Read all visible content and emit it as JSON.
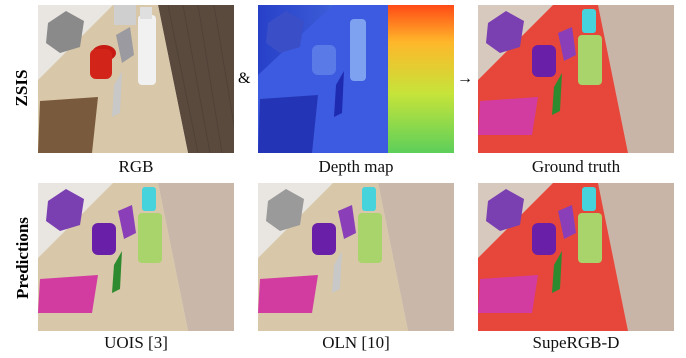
{
  "row_labels": {
    "top": "ZSIS",
    "bottom": "Predictions"
  },
  "symbols": {
    "and": "&",
    "arrow": "→"
  },
  "captions": {
    "rgb": "RGB",
    "depth": "Depth map",
    "ground_truth": "Ground truth",
    "uois": "UOIS [3]",
    "oln": "OLN [10]",
    "supergbd": "SupeRGB-D"
  },
  "colors": {
    "mask_red": "#e6473a",
    "purple": "#7a3fb0",
    "pink": "#d23ca0",
    "lime": "#a9d46b",
    "cyan": "#46d3dc",
    "table_wood": "#d8c7a8",
    "floor": "#8a7a6e"
  }
}
